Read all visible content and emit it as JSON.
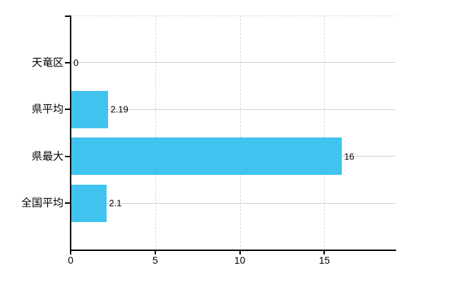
{
  "chart_data": {
    "type": "bar",
    "orientation": "horizontal",
    "title": "",
    "categories": [
      "天竜区",
      "県平均",
      "県最大",
      "全国平均"
    ],
    "values": [
      0,
      2.19,
      16,
      2.1
    ],
    "value_labels": [
      "0",
      "2.19",
      "16",
      "2.1"
    ],
    "x_tick_labels": [
      "0",
      "5",
      "10",
      "15"
    ],
    "x_tick_values": [
      0,
      5,
      10,
      15
    ],
    "xlim": [
      0,
      19.2
    ],
    "grid": true,
    "legend_position": "none",
    "colors": {
      "bar": "#41C3EF",
      "axis": "#000000",
      "grid_solid": "#cfcfcf",
      "grid_dashed": "#d8d8d8",
      "text": "#000000",
      "background": "#ffffff"
    }
  }
}
